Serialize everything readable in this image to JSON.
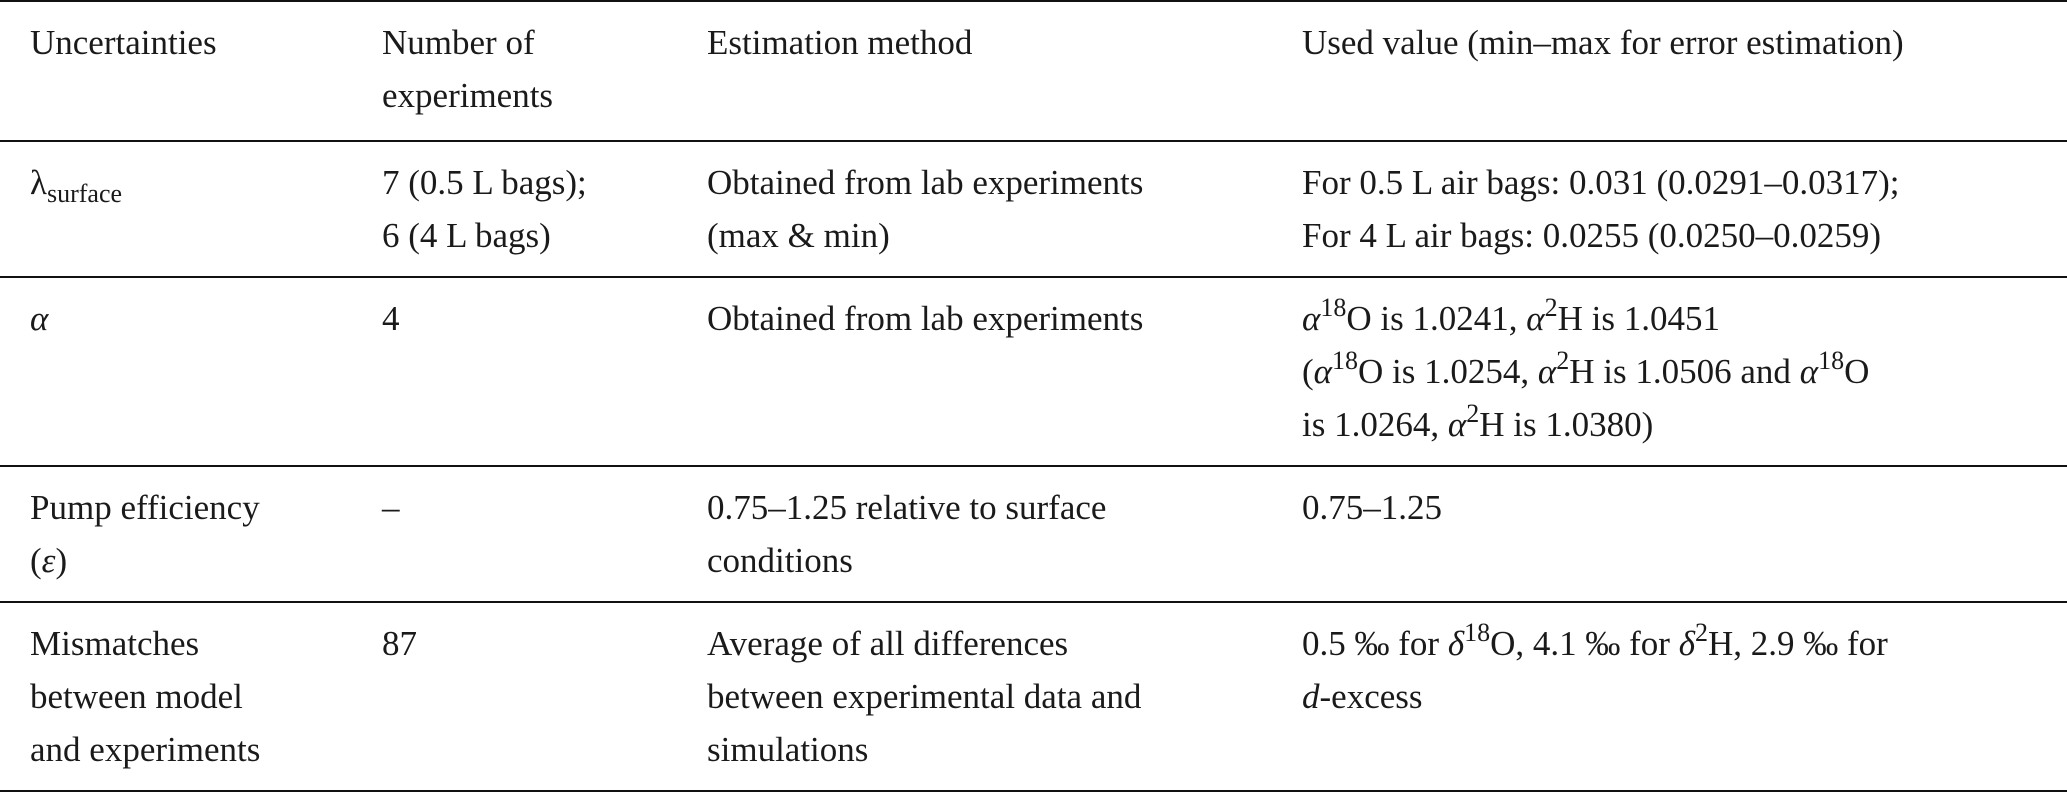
{
  "table": {
    "headers": {
      "uncertainties": "Uncertainties",
      "experiments": [
        "Number of",
        "experiments"
      ],
      "method": "Estimation method",
      "value": "Used value (min–max for error estimation)"
    },
    "rows": [
      {
        "name_base": "λ",
        "name_sub": "surface",
        "experiments": [
          "7 (0.5 L bags);",
          "6 (4 L bags)"
        ],
        "method": [
          "Obtained from lab experiments",
          "(max & min)"
        ],
        "value": [
          "For 0.5 L air bags: 0.031 (0.0291–0.0317);",
          "For 4 L air bags: 0.0255 (0.0250–0.0259)"
        ]
      },
      {
        "name": "α",
        "experiments": "4",
        "method": "Obtained from lab experiments",
        "value": {
          "l1": {
            "a1": "α",
            "s1": "18",
            "t1": "O is 1.0241, ",
            "a2": "α",
            "s2": "2",
            "t2": "H is 1.0451"
          },
          "l2": {
            "t0": "(",
            "a1": "α",
            "s1": "18",
            "t1": "O is 1.0254, ",
            "a2": "α",
            "s2": "2",
            "t2": "H is 1.0506 and ",
            "a3": "α",
            "s3": "18",
            "t3": "O"
          },
          "l3": {
            "t0": "is 1.0264, ",
            "a1": "α",
            "s1": "2",
            "t1": "H is 1.0380)"
          }
        }
      },
      {
        "name": [
          "Pump efficiency",
          "(",
          "ε",
          ")"
        ],
        "experiments": "–",
        "method": [
          "0.75–1.25 relative to surface",
          "conditions"
        ],
        "value": "0.75–1.25"
      },
      {
        "name": [
          "Mismatches",
          "between model",
          "and experiments"
        ],
        "experiments": "87",
        "method": [
          "Average of all differences",
          "between experimental data and",
          "simulations"
        ],
        "value": {
          "l1": {
            "t0": "0.5 ‰ for ",
            "d1": "δ",
            "s1": "18",
            "t1": "O, 4.1 ‰ for ",
            "d2": "δ",
            "s2": "2",
            "t2": "H, 2.9 ‰ for"
          },
          "l2": {
            "d": "d",
            "t": "-excess"
          }
        }
      }
    ]
  }
}
